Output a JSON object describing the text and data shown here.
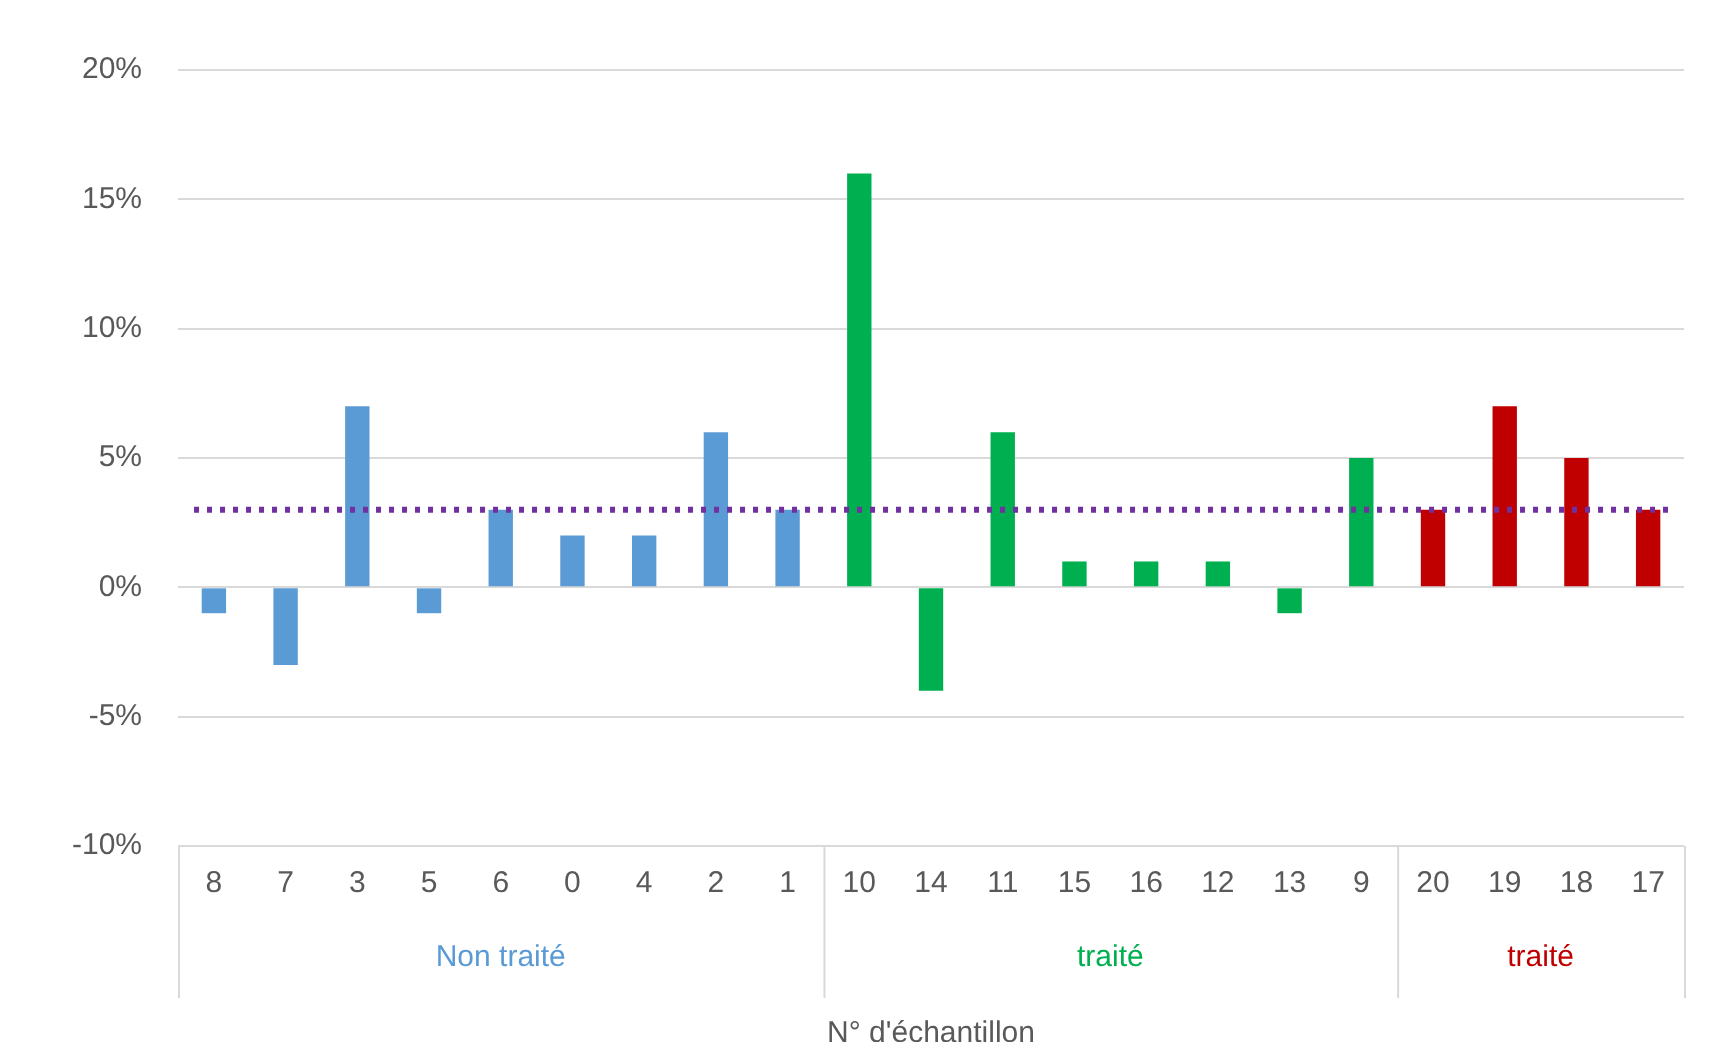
{
  "chart_data": {
    "type": "bar",
    "xlabel": "N° d'échantillon",
    "categories": [
      "8",
      "7",
      "3",
      "5",
      "6",
      "0",
      "4",
      "2",
      "1",
      "10",
      "14",
      "11",
      "15",
      "16",
      "12",
      "13",
      "9",
      "20",
      "19",
      "18",
      "17"
    ],
    "series": [
      {
        "name": "Non traité",
        "color": "#5b9bd5",
        "values": [
          -1,
          -3,
          7,
          -1,
          3,
          2,
          2,
          6,
          3,
          null,
          null,
          null,
          null,
          null,
          null,
          null,
          null,
          null,
          null,
          null,
          null
        ]
      },
      {
        "name": "traité",
        "color": "#00b050",
        "values": [
          null,
          null,
          null,
          null,
          null,
          null,
          null,
          null,
          null,
          16,
          -4,
          6,
          1,
          1,
          1,
          -1,
          5,
          null,
          null,
          null,
          null
        ]
      },
      {
        "name": "traité",
        "color": "#c00000",
        "values": [
          null,
          null,
          null,
          null,
          null,
          null,
          null,
          null,
          null,
          null,
          null,
          null,
          null,
          null,
          null,
          null,
          null,
          3,
          7,
          5,
          3
        ]
      }
    ],
    "ylim": [
      -10,
      20
    ],
    "yticks": [
      {
        "value": -10,
        "label": "-10%"
      },
      {
        "value": -5,
        "label": "-5%"
      },
      {
        "value": 0,
        "label": "0%"
      },
      {
        "value": 5,
        "label": "5%"
      },
      {
        "value": 10,
        "label": "10%"
      },
      {
        "value": 15,
        "label": "15%"
      },
      {
        "value": 20,
        "label": "20%"
      }
    ],
    "grid": "y",
    "ref_lines": [
      {
        "axis": "y",
        "value": 3,
        "color": "#7030a0",
        "line_style": "dotted"
      }
    ]
  }
}
